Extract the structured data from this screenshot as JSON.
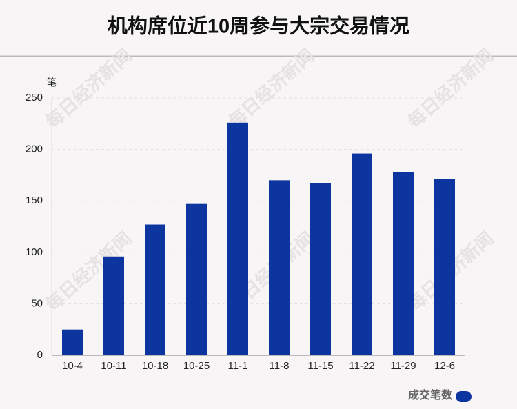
{
  "chart_data": {
    "type": "bar",
    "title": "机构席位近10周参与大宗交易情况",
    "y_unit": "笔",
    "watermark": "每日经济新闻",
    "categories": [
      "10-4",
      "10-11",
      "10-18",
      "10-25",
      "11-1",
      "11-8",
      "11-15",
      "11-22",
      "11-29",
      "12-6"
    ],
    "series": [
      {
        "name": "成交笔数",
        "color": "#0d35a0",
        "values": [
          25,
          96,
          127,
          147,
          226,
          170,
          167,
          196,
          178,
          171
        ]
      }
    ],
    "ylim": [
      0,
      250
    ],
    "yticks": [
      0,
      50,
      100,
      150,
      200,
      250
    ],
    "grid": true,
    "legend": "bottom-right"
  }
}
